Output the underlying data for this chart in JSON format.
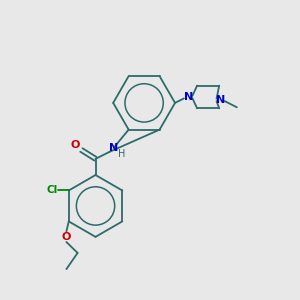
{
  "background_color": "#e8e8e8",
  "bond_color": "#2d6b6b",
  "atom_colors": {
    "N": "#0000cc",
    "O": "#cc0000",
    "Cl": "#008800",
    "H": "#2d6b6b"
  },
  "layout": {
    "xlim": [
      0,
      10
    ],
    "ylim": [
      0,
      10
    ]
  }
}
